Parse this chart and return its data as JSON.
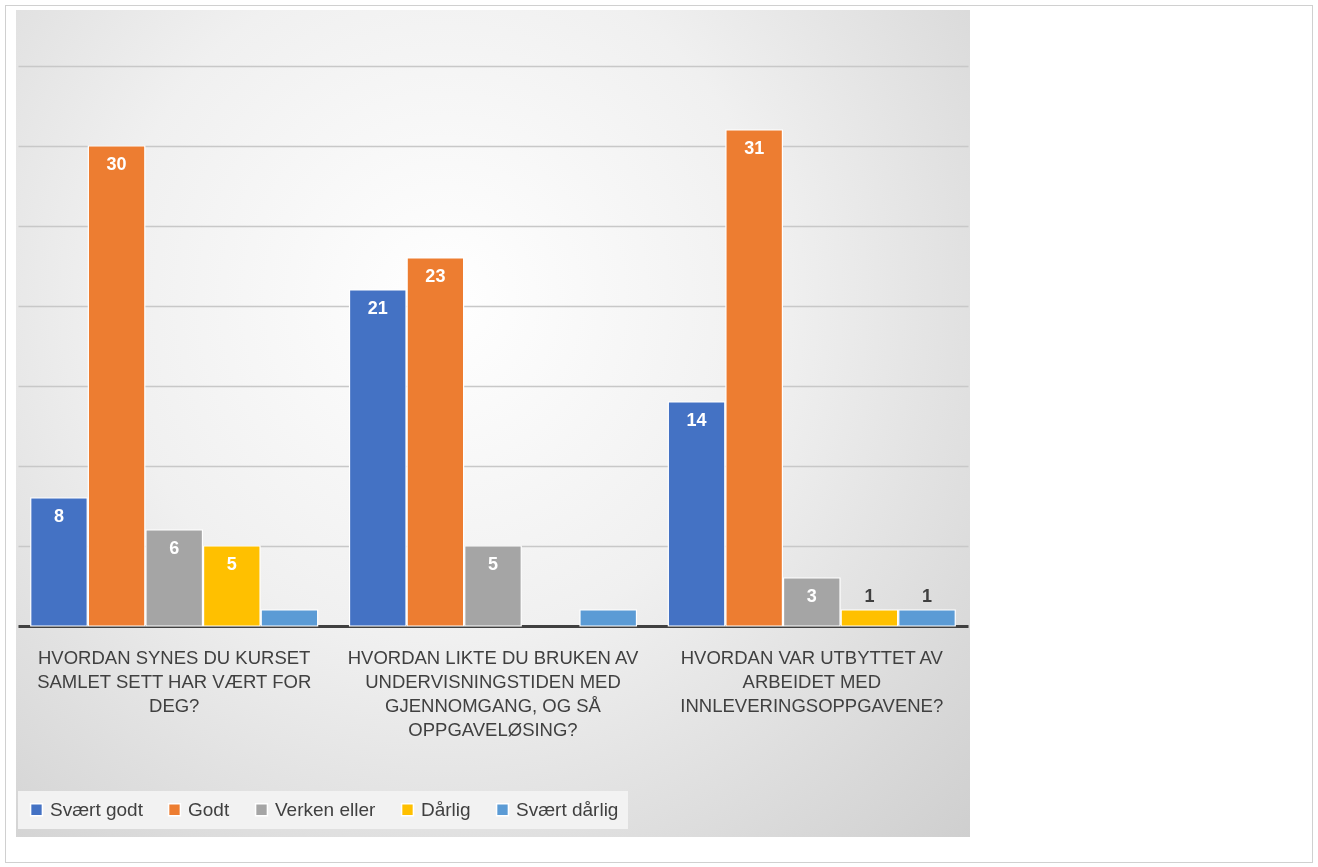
{
  "chart_data": {
    "type": "bar",
    "categories": [
      "HVORDAN SYNES DU KURSET SAMLET SETT HAR VÆRT FOR DEG?",
      "HVORDAN LIKTE DU BRUKEN AV UNDERVISNINGSTIDEN MED GJENNOMGANG, OG SÅ OPPGAVELØSING?",
      "HVORDAN VAR UTBYTTET AV ARBEIDET MED INNLEVERINGSOPPGAVENE?"
    ],
    "series": [
      {
        "name": "Svært godt",
        "color": "#4472c4",
        "values": [
          8,
          21,
          14
        ],
        "value_labels": [
          "8",
          "21",
          "14"
        ]
      },
      {
        "name": "Godt",
        "color": "#ed7d31",
        "values": [
          30,
          23,
          31
        ],
        "value_labels": [
          "30",
          "23",
          "31"
        ]
      },
      {
        "name": "Verken eller",
        "color": "#a5a5a5",
        "values": [
          6,
          5,
          3
        ],
        "value_labels": [
          "6",
          "5",
          "3"
        ]
      },
      {
        "name": "Dårlig",
        "color": "#ffc000",
        "values": [
          5,
          null,
          1
        ],
        "value_labels": [
          "5",
          null,
          "1"
        ]
      },
      {
        "name": "Svært dårlig",
        "color": "#5b9bd5",
        "values": [
          1,
          1,
          1
        ],
        "value_labels": [
          null,
          null,
          "1"
        ]
      }
    ],
    "ylim": [
      0,
      35
    ],
    "yticks": [
      {
        "value": 0,
        "label": null
      },
      {
        "value": 5,
        "label": null
      },
      {
        "value": 10,
        "label": null
      },
      {
        "value": 15,
        "label": null
      },
      {
        "value": 20,
        "label": null
      },
      {
        "value": 25,
        "label": null
      },
      {
        "value": 30,
        "label": null
      },
      {
        "value": 35,
        "label": null
      }
    ],
    "grid": "y",
    "legend": "bottom",
    "tick_labels": "x"
  }
}
